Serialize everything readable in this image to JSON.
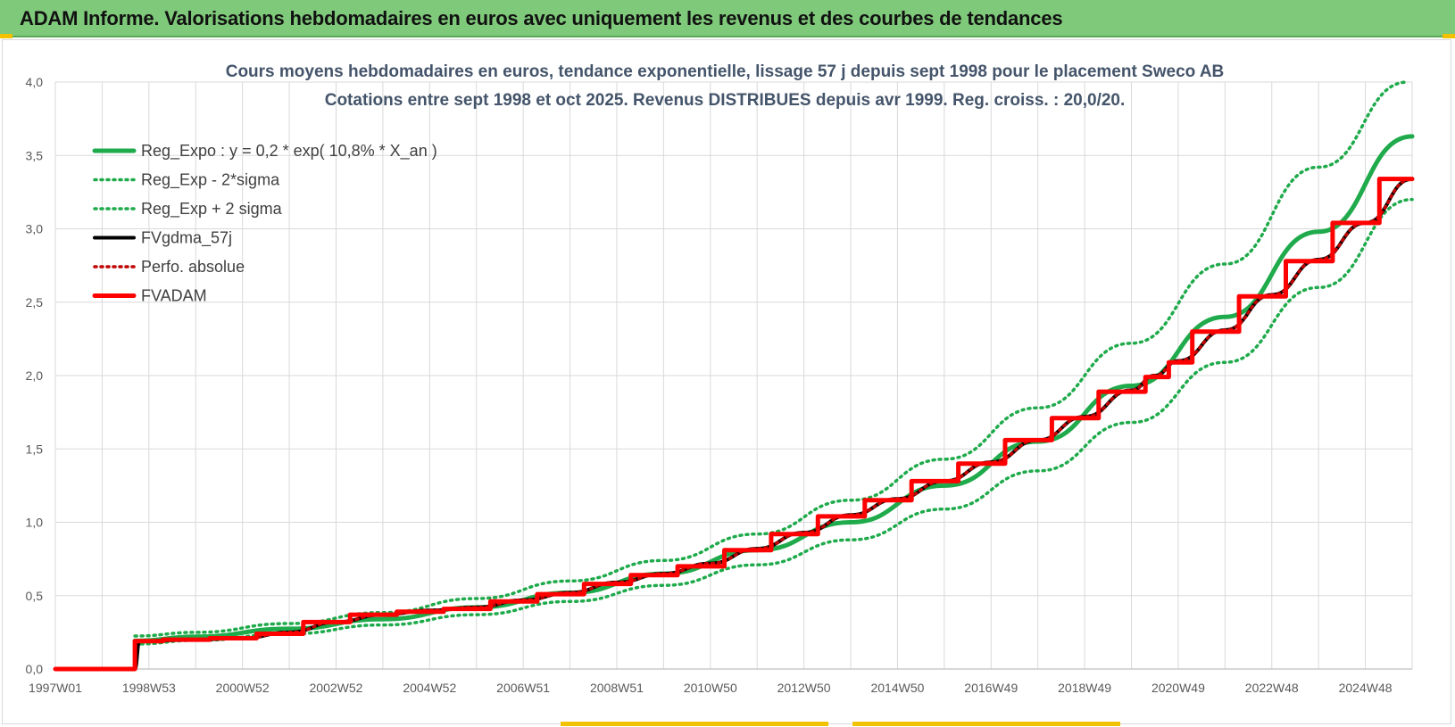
{
  "page_title": "ADAM Informe. Valorisations hebdomadaires en euros avec uniquement les revenus et des courbes de tendances",
  "colors": {
    "header_bg": "#7fc97a",
    "reg_expo": "#1faa4b",
    "fvgdma": "#000000",
    "perfo": "#c00000",
    "fvadam": "#ff0000",
    "accent": "#f2c200"
  },
  "chart_data": {
    "type": "line",
    "title": "Cours moyens hebdomadaires en euros, tendance exponentielle, lissage 57 j depuis sept 1998 pour le placement Sweco AB",
    "subtitle": "Cotations entre sept 1998 et oct 2025. Revenus DISTRIBUES depuis avr 1999. Reg. croiss. : 20,0/20.",
    "xlabel": "",
    "ylabel": "",
    "ylim": [
      0,
      4
    ],
    "xlim": [
      1997.0,
      2026.0
    ],
    "grid": true,
    "legend_position": "top-left",
    "y_ticks": [
      "0,0",
      "0,5",
      "1,0",
      "1,5",
      "2,0",
      "2,5",
      "3,0",
      "3,5",
      "4,0"
    ],
    "x_ticks": [
      {
        "label": "1997W01",
        "x": 1997.0
      },
      {
        "label": "1998W53",
        "x": 1999.0
      },
      {
        "label": "2000W52",
        "x": 2001.0
      },
      {
        "label": "2002W52",
        "x": 2003.0
      },
      {
        "label": "2004W52",
        "x": 2005.0
      },
      {
        "label": "2006W51",
        "x": 2007.0
      },
      {
        "label": "2008W51",
        "x": 2009.0
      },
      {
        "label": "2010W50",
        "x": 2011.0
      },
      {
        "label": "2012W50",
        "x": 2013.0
      },
      {
        "label": "2014W50",
        "x": 2015.0
      },
      {
        "label": "2016W49",
        "x": 2017.0
      },
      {
        "label": "2018W49",
        "x": 2019.0
      },
      {
        "label": "2020W49",
        "x": 2021.0
      },
      {
        "label": "2022W48",
        "x": 2023.0
      },
      {
        "label": "2024W48",
        "x": 2025.0
      }
    ],
    "series": [
      {
        "name": "Reg_Expo : y = 0,2 * exp( 10,8% *  X_an )",
        "style": "solid-thick",
        "color": "#1faa4b",
        "points": [
          [
            1998.7,
            0.192
          ],
          [
            2000,
            0.22
          ],
          [
            2002,
            0.274
          ],
          [
            2004,
            0.34
          ],
          [
            2006,
            0.42
          ],
          [
            2008,
            0.52
          ],
          [
            2010,
            0.65
          ],
          [
            2012,
            0.81
          ],
          [
            2014,
            1.0
          ],
          [
            2016,
            1.25
          ],
          [
            2018,
            1.55
          ],
          [
            2020,
            1.93
          ],
          [
            2022,
            2.4
          ],
          [
            2024,
            2.98
          ],
          [
            2026,
            3.63
          ]
        ]
      },
      {
        "name": "Reg_Exp - 2*sigma",
        "style": "dotted",
        "color": "#1faa4b",
        "points": [
          [
            1998.7,
            0.17
          ],
          [
            2000,
            0.195
          ],
          [
            2002,
            0.24
          ],
          [
            2004,
            0.3
          ],
          [
            2006,
            0.37
          ],
          [
            2008,
            0.46
          ],
          [
            2010,
            0.57
          ],
          [
            2012,
            0.71
          ],
          [
            2014,
            0.88
          ],
          [
            2016,
            1.09
          ],
          [
            2018,
            1.35
          ],
          [
            2020,
            1.68
          ],
          [
            2022,
            2.09
          ],
          [
            2024,
            2.6
          ],
          [
            2026,
            3.2
          ]
        ]
      },
      {
        "name": "Reg_Exp + 2 sigma",
        "style": "dotted",
        "color": "#1faa4b",
        "points": [
          [
            1998.7,
            0.225
          ],
          [
            2000,
            0.25
          ],
          [
            2002,
            0.31
          ],
          [
            2004,
            0.385
          ],
          [
            2006,
            0.48
          ],
          [
            2008,
            0.6
          ],
          [
            2010,
            0.74
          ],
          [
            2012,
            0.92
          ],
          [
            2014,
            1.15
          ],
          [
            2016,
            1.43
          ],
          [
            2018,
            1.78
          ],
          [
            2020,
            2.22
          ],
          [
            2022,
            2.76
          ],
          [
            2024,
            3.42
          ],
          [
            2025.9,
            4.0
          ]
        ]
      },
      {
        "name": "FVgdma_57j",
        "style": "solid",
        "color": "#000000",
        "points": [
          [
            1997.0,
            0
          ],
          [
            1998.7,
            0
          ],
          [
            1998.8,
            0.19
          ],
          [
            2000,
            0.2
          ],
          [
            2001,
            0.21
          ],
          [
            2002,
            0.25
          ],
          [
            2003,
            0.32
          ],
          [
            2004,
            0.37
          ],
          [
            2005,
            0.4
          ],
          [
            2006,
            0.42
          ],
          [
            2007,
            0.47
          ],
          [
            2008,
            0.52
          ],
          [
            2009,
            0.59
          ],
          [
            2010,
            0.65
          ],
          [
            2011,
            0.72
          ],
          [
            2012,
            0.82
          ],
          [
            2013,
            0.93
          ],
          [
            2014,
            1.05
          ],
          [
            2015,
            1.16
          ],
          [
            2016,
            1.28
          ],
          [
            2017,
            1.41
          ],
          [
            2018,
            1.56
          ],
          [
            2019,
            1.72
          ],
          [
            2020,
            1.9
          ],
          [
            2020.5,
            2.0
          ],
          [
            2021,
            2.1
          ],
          [
            2022,
            2.31
          ],
          [
            2023,
            2.55
          ],
          [
            2024,
            2.79
          ],
          [
            2025,
            3.04
          ],
          [
            2026,
            3.34
          ]
        ]
      },
      {
        "name": "Perfo. absolue",
        "style": "dotted",
        "color": "#c00000",
        "points": [
          [
            1997.0,
            0
          ],
          [
            1998.7,
            0
          ],
          [
            1998.7,
            0.19
          ],
          [
            2000,
            0.2
          ],
          [
            2001,
            0.21
          ],
          [
            2002,
            0.25
          ],
          [
            2003,
            0.32
          ],
          [
            2004,
            0.37
          ],
          [
            2005,
            0.4
          ],
          [
            2006,
            0.42
          ],
          [
            2007,
            0.47
          ],
          [
            2008,
            0.52
          ],
          [
            2009,
            0.59
          ],
          [
            2010,
            0.65
          ],
          [
            2011,
            0.72
          ],
          [
            2012,
            0.82
          ],
          [
            2013,
            0.93
          ],
          [
            2014,
            1.05
          ],
          [
            2015,
            1.16
          ],
          [
            2016,
            1.28
          ],
          [
            2017,
            1.41
          ],
          [
            2018,
            1.56
          ],
          [
            2019,
            1.72
          ],
          [
            2020,
            1.9
          ],
          [
            2020.5,
            2.0
          ],
          [
            2021,
            2.1
          ],
          [
            2022,
            2.31
          ],
          [
            2023,
            2.55
          ],
          [
            2024,
            2.79
          ],
          [
            2025,
            3.04
          ],
          [
            2026,
            3.34
          ]
        ]
      },
      {
        "name": "FVADAM",
        "style": "step-thick",
        "color": "#ff0000",
        "steps": [
          {
            "x": 1997.0,
            "y": 0
          },
          {
            "x": 1998.7,
            "y": 0.19
          },
          {
            "x": 1999.3,
            "y": 0.2
          },
          {
            "x": 2000.3,
            "y": 0.21
          },
          {
            "x": 2001.3,
            "y": 0.24
          },
          {
            "x": 2002.3,
            "y": 0.32
          },
          {
            "x": 2003.3,
            "y": 0.37
          },
          {
            "x": 2004.3,
            "y": 0.39
          },
          {
            "x": 2005.3,
            "y": 0.41
          },
          {
            "x": 2006.3,
            "y": 0.46
          },
          {
            "x": 2007.3,
            "y": 0.51
          },
          {
            "x": 2008.3,
            "y": 0.58
          },
          {
            "x": 2009.3,
            "y": 0.64
          },
          {
            "x": 2010.3,
            "y": 0.7
          },
          {
            "x": 2011.3,
            "y": 0.81
          },
          {
            "x": 2012.3,
            "y": 0.92
          },
          {
            "x": 2013.3,
            "y": 1.04
          },
          {
            "x": 2014.3,
            "y": 1.15
          },
          {
            "x": 2015.3,
            "y": 1.28
          },
          {
            "x": 2016.3,
            "y": 1.4
          },
          {
            "x": 2017.3,
            "y": 1.56
          },
          {
            "x": 2018.3,
            "y": 1.71
          },
          {
            "x": 2019.3,
            "y": 1.89
          },
          {
            "x": 2020.3,
            "y": 1.99
          },
          {
            "x": 2020.8,
            "y": 2.09
          },
          {
            "x": 2021.3,
            "y": 2.3
          },
          {
            "x": 2022.3,
            "y": 2.54
          },
          {
            "x": 2023.3,
            "y": 2.78
          },
          {
            "x": 2024.3,
            "y": 3.04
          },
          {
            "x": 2025.3,
            "y": 3.34
          },
          {
            "x": 2026.0,
            "y": 3.34
          }
        ]
      }
    ]
  }
}
